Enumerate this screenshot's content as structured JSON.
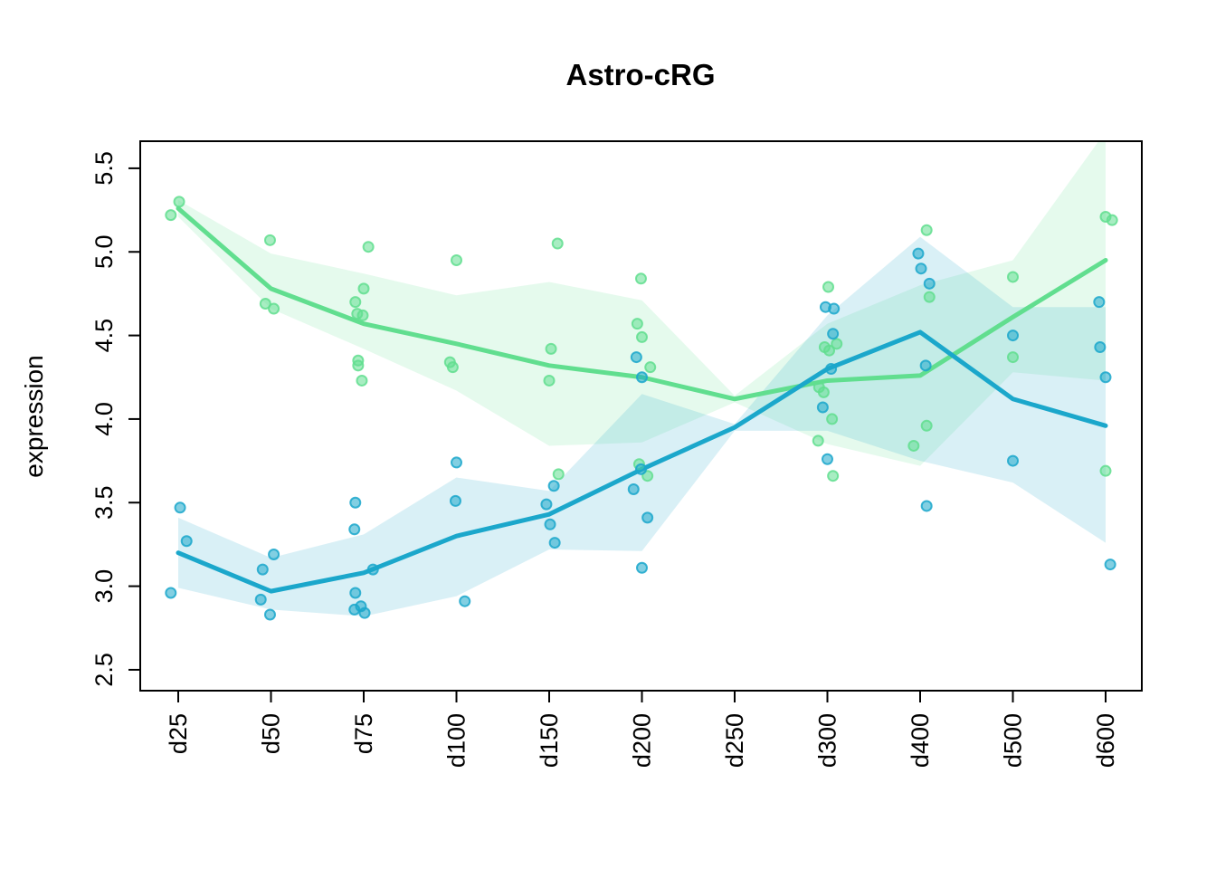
{
  "page": {
    "background": "#ffffff"
  },
  "chart_data": {
    "type": "line",
    "title": "Astro-cRG",
    "xlabel": "",
    "ylabel": "expression",
    "grid": false,
    "legend_position": "none",
    "categories": [
      "d25",
      "d50",
      "d75",
      "d100",
      "d150",
      "d200",
      "d250",
      "d300",
      "d400",
      "d500",
      "d600"
    ],
    "y_ticks": [
      2.5,
      3.0,
      3.5,
      4.0,
      4.5,
      5.0,
      5.5
    ],
    "ylim": [
      2.375,
      5.662
    ],
    "axis_color": "#000000",
    "series": [
      {
        "id": "series-green",
        "color": "#61DE8F",
        "band_opacity": 0.165,
        "mean": [
          5.26,
          4.78,
          4.57,
          4.45,
          4.32,
          4.25,
          4.12,
          4.23,
          4.26,
          4.61,
          4.95
        ],
        "band_upper": [
          5.31,
          4.99,
          4.87,
          4.74,
          4.82,
          4.71,
          4.14,
          4.57,
          4.8,
          4.95,
          5.72
        ],
        "band_lower": [
          5.21,
          4.66,
          4.42,
          4.17,
          3.84,
          3.86,
          4.1,
          3.85,
          3.72,
          4.28,
          4.23
        ],
        "points": [
          [
            0.01,
            5.3
          ],
          [
            -0.08,
            5.22
          ],
          [
            0.99,
            5.07
          ],
          [
            0.94,
            4.69
          ],
          [
            1.03,
            4.66
          ],
          [
            2.05,
            5.03
          ],
          [
            2.0,
            4.78
          ],
          [
            1.91,
            4.7
          ],
          [
            1.93,
            4.63
          ],
          [
            1.99,
            4.62
          ],
          [
            1.94,
            4.35
          ],
          [
            1.94,
            4.32
          ],
          [
            1.98,
            4.23
          ],
          [
            3.0,
            4.95
          ],
          [
            2.93,
            4.34
          ],
          [
            2.96,
            4.31
          ],
          [
            4.09,
            5.05
          ],
          [
            4.02,
            4.42
          ],
          [
            4.0,
            4.23
          ],
          [
            4.1,
            3.67
          ],
          [
            4.99,
            4.84
          ],
          [
            4.95,
            4.57
          ],
          [
            5.0,
            4.49
          ],
          [
            5.09,
            4.31
          ],
          [
            4.97,
            3.73
          ],
          [
            5.06,
            3.66
          ],
          [
            7.01,
            4.79
          ],
          [
            7.1,
            4.45
          ],
          [
            6.97,
            4.43
          ],
          [
            7.02,
            4.41
          ],
          [
            6.91,
            4.19
          ],
          [
            6.96,
            4.16
          ],
          [
            7.05,
            4.0
          ],
          [
            6.9,
            3.87
          ],
          [
            7.06,
            3.66
          ],
          [
            8.07,
            5.13
          ],
          [
            8.1,
            4.73
          ],
          [
            8.07,
            3.96
          ],
          [
            7.93,
            3.84
          ],
          [
            9.0,
            4.85
          ],
          [
            9.0,
            4.37
          ],
          [
            10.0,
            5.21
          ],
          [
            10.07,
            5.19
          ],
          [
            10.0,
            3.69
          ]
        ]
      },
      {
        "id": "series-blue",
        "color": "#1BA7CB",
        "band_opacity": 0.167,
        "mean": [
          3.2,
          2.97,
          3.08,
          3.3,
          3.43,
          3.7,
          3.95,
          4.3,
          4.52,
          4.12,
          3.96
        ],
        "band_upper": [
          3.41,
          3.17,
          3.31,
          3.65,
          3.57,
          4.15,
          3.97,
          4.62,
          5.09,
          4.67,
          4.67
        ],
        "band_lower": [
          2.99,
          2.86,
          2.82,
          2.94,
          3.22,
          3.21,
          3.93,
          3.93,
          3.75,
          3.62,
          3.26
        ],
        "points": [
          [
            0.02,
            3.47
          ],
          [
            0.09,
            3.27
          ],
          [
            -0.08,
            2.96
          ],
          [
            1.03,
            3.19
          ],
          [
            0.91,
            3.1
          ],
          [
            0.89,
            2.92
          ],
          [
            0.99,
            2.83
          ],
          [
            1.91,
            3.5
          ],
          [
            1.9,
            3.34
          ],
          [
            2.1,
            3.1
          ],
          [
            1.91,
            2.96
          ],
          [
            1.97,
            2.88
          ],
          [
            1.9,
            2.86
          ],
          [
            2.01,
            2.84
          ],
          [
            3.0,
            3.74
          ],
          [
            2.99,
            3.51
          ],
          [
            3.09,
            2.91
          ],
          [
            4.05,
            3.6
          ],
          [
            3.97,
            3.49
          ],
          [
            4.01,
            3.37
          ],
          [
            4.06,
            3.26
          ],
          [
            4.94,
            4.37
          ],
          [
            5.0,
            4.25
          ],
          [
            4.99,
            3.7
          ],
          [
            4.91,
            3.58
          ],
          [
            5.06,
            3.41
          ],
          [
            5.0,
            3.11
          ],
          [
            6.98,
            4.67
          ],
          [
            7.07,
            4.66
          ],
          [
            7.06,
            4.51
          ],
          [
            7.04,
            4.3
          ],
          [
            6.95,
            4.07
          ],
          [
            7.0,
            3.76
          ],
          [
            7.98,
            4.99
          ],
          [
            8.01,
            4.9
          ],
          [
            8.1,
            4.81
          ],
          [
            8.06,
            4.32
          ],
          [
            8.07,
            3.48
          ],
          [
            9.0,
            4.5
          ],
          [
            9.0,
            3.75
          ],
          [
            9.93,
            4.7
          ],
          [
            9.94,
            4.43
          ],
          [
            10.0,
            4.25
          ],
          [
            10.05,
            3.13
          ]
        ]
      }
    ]
  }
}
